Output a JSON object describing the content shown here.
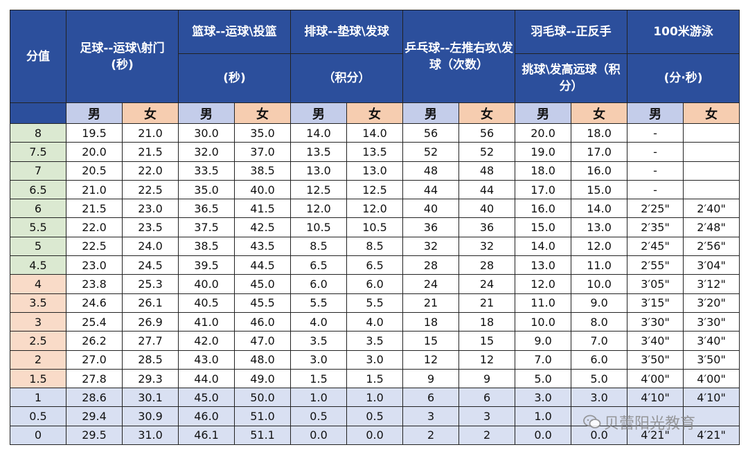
{
  "header": {
    "score_label": "分值",
    "groups": [
      {
        "top": "足球--运球\\射门",
        "bottom": "(秒)",
        "merged": true
      },
      {
        "top": "篮球--运球\\投篮",
        "bottom": "(秒)"
      },
      {
        "top": "排球--垫球\\发球",
        "bottom": "（积分）"
      },
      {
        "top": "乒乓球--左推右攻\\发球（次数）",
        "bottom": "",
        "merged": true
      },
      {
        "top": "羽毛球--正反手",
        "bottom": "挑球\\发高远球（积分）"
      },
      {
        "top": "100米游泳",
        "bottom": "(分·秒)"
      }
    ],
    "male": "男",
    "female": "女"
  },
  "rows": [
    {
      "score": "8",
      "vals": [
        "19.5",
        "21.0",
        "30.0",
        "35.0",
        "14.0",
        "14.0",
        "56",
        "56",
        "20.0",
        "18.0",
        "-",
        ""
      ]
    },
    {
      "score": "7.5",
      "vals": [
        "20.0",
        "21.5",
        "32.0",
        "37.0",
        "13.5",
        "13.5",
        "52",
        "52",
        "19.0",
        "17.0",
        "-",
        ""
      ]
    },
    {
      "score": "7",
      "vals": [
        "20.5",
        "22.0",
        "33.5",
        "38.5",
        "13.0",
        "13.0",
        "48",
        "48",
        "18.0",
        "16.0",
        "-",
        ""
      ]
    },
    {
      "score": "6.5",
      "vals": [
        "21.0",
        "22.5",
        "35.0",
        "40.0",
        "12.5",
        "12.5",
        "44",
        "44",
        "17.0",
        "15.0",
        "-",
        ""
      ]
    },
    {
      "score": "6",
      "vals": [
        "21.5",
        "23.0",
        "36.5",
        "41.5",
        "12.0",
        "12.0",
        "40",
        "40",
        "16.0",
        "14.0",
        "2′25\"",
        "2′40\""
      ]
    },
    {
      "score": "5.5",
      "vals": [
        "22.0",
        "23.5",
        "37.5",
        "42.5",
        "10.5",
        "10.5",
        "36",
        "36",
        "15.0",
        "13.0",
        "2′35\"",
        "2′48\""
      ]
    },
    {
      "score": "5",
      "vals": [
        "22.5",
        "24.0",
        "38.5",
        "43.5",
        "8.5",
        "8.5",
        "32",
        "32",
        "14.0",
        "12.0",
        "2′45\"",
        "2′56\""
      ]
    },
    {
      "score": "4.5",
      "vals": [
        "23.0",
        "24.5",
        "39.5",
        "44.5",
        "6.5",
        "6.5",
        "28",
        "28",
        "13.0",
        "11.0",
        "2′55\"",
        "3′04\""
      ]
    },
    {
      "score": "4",
      "vals": [
        "23.8",
        "25.3",
        "40.0",
        "45.0",
        "6.0",
        "6.0",
        "24",
        "24",
        "12.0",
        "10.0",
        "3′05\"",
        "3′12\""
      ]
    },
    {
      "score": "3.5",
      "vals": [
        "24.6",
        "26.1",
        "40.5",
        "45.5",
        "5.5",
        "5.5",
        "21",
        "21",
        "11.0",
        "9.0",
        "3′15\"",
        "3′20\""
      ]
    },
    {
      "score": "3",
      "vals": [
        "25.4",
        "26.9",
        "41.0",
        "46.0",
        "4.0",
        "4.0",
        "18",
        "18",
        "10.0",
        "8.0",
        "3′30\"",
        "3′30\""
      ]
    },
    {
      "score": "2.5",
      "vals": [
        "26.2",
        "27.7",
        "42.0",
        "47.0",
        "3.5",
        "3.5",
        "15",
        "15",
        "9.0",
        "7.0",
        "3′40\"",
        "3′40\""
      ]
    },
    {
      "score": "2",
      "vals": [
        "27.0",
        "28.5",
        "43.0",
        "48.0",
        "3.0",
        "3.0",
        "12",
        "12",
        "7.0",
        "6.0",
        "3′50\"",
        "3′50\""
      ]
    },
    {
      "score": "1.5",
      "vals": [
        "27.8",
        "29.3",
        "44.0",
        "49.0",
        "1.5",
        "1.5",
        "9",
        "9",
        "5.0",
        "5.0",
        "4′00\"",
        "4′00\""
      ]
    },
    {
      "score": "1",
      "vals": [
        "28.6",
        "30.1",
        "45.0",
        "50.0",
        "1.0",
        "1.0",
        "6",
        "6",
        "3.0",
        "3.0",
        "4′10\"",
        "4′10\""
      ]
    },
    {
      "score": "0.5",
      "vals": [
        "29.4",
        "30.9",
        "46.0",
        "51.0",
        "0.5",
        "0.5",
        "3",
        "3",
        "1.0",
        "",
        "",
        ""
      ]
    },
    {
      "score": "0",
      "vals": [
        "29.5",
        "31.0",
        "46.1",
        "51.1",
        "0.0",
        "0.0",
        "2",
        "2",
        "0.0",
        "0.0",
        "4′21\"",
        "4′21\""
      ]
    }
  ],
  "row_bands": [
    "green",
    "green",
    "green",
    "green",
    "green",
    "green",
    "green",
    "green",
    "orange",
    "orange",
    "orange",
    "orange",
    "orange",
    "orange",
    "blue",
    "blue",
    "blue"
  ],
  "colors": {
    "header": "#2c4f9c",
    "male_sub": "#c4cdea",
    "female_sub": "#f6cdb0",
    "green": "#dbe9d1",
    "orange": "#f9dbc8",
    "blue": "#d6def1"
  },
  "watermark": {
    "icon": "wechat-icon",
    "text": "贝蕾阳光教育"
  }
}
